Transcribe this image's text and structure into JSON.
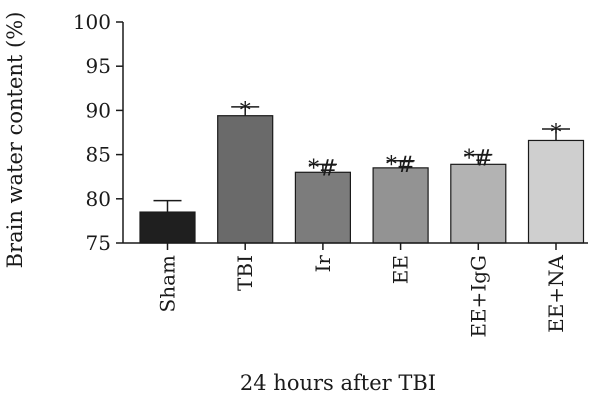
{
  "chart_data": {
    "type": "bar",
    "title": "",
    "xlabel": "24 hours after TBI",
    "ylabel": "Brain water content (%)",
    "ylim": [
      75,
      100
    ],
    "yticks": [
      75,
      80,
      85,
      90,
      95,
      100
    ],
    "grid": false,
    "categories": [
      "Sham",
      "TBI",
      "Ir",
      "EE",
      "EE+IgG",
      "EE+NA"
    ],
    "values": [
      78.5,
      89.4,
      83.0,
      83.5,
      83.9,
      86.6
    ],
    "errors": [
      1.3,
      1.0,
      0.9,
      0.8,
      1.1,
      1.3
    ],
    "annotations": [
      "",
      "*",
      "*#",
      "*#",
      "*#",
      "*"
    ],
    "colors": [
      "#1f1f1f",
      "#6a6a6a",
      "#7c7c7c",
      "#939393",
      "#b3b3b3",
      "#cfcfcf"
    ]
  }
}
